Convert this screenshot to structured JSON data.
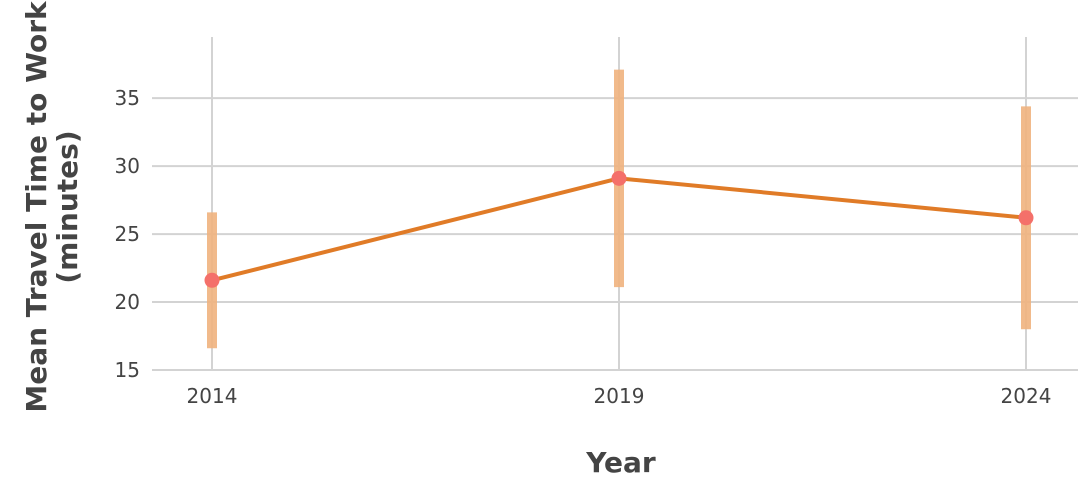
{
  "chart_data": {
    "type": "line",
    "title": "",
    "xlabel": "Year",
    "ylabel_lines": [
      "Mean Travel Time to Work",
      "(minutes)"
    ],
    "x": [
      "2014",
      "2019",
      "2024"
    ],
    "series": [
      {
        "values": [
          21.6,
          29.1,
          26.2
        ],
        "error_low": [
          16.6,
          21.1,
          18.0
        ],
        "error_high": [
          26.6,
          37.1,
          34.4
        ]
      }
    ],
    "yticks": [
      15,
      20,
      25,
      30,
      35
    ],
    "ylim": [
      15,
      39.5
    ],
    "grid": true,
    "legend": "none",
    "colors": {
      "line": "#E07B27",
      "marker": "#F4706A",
      "error_bar": "#F0B37E",
      "grid": "#D3D3D3",
      "text": "#444444"
    }
  }
}
